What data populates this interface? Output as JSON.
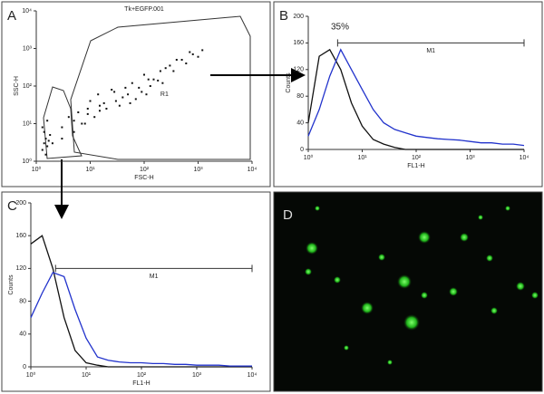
{
  "chart_data": [
    {
      "type": "scatter",
      "panel_label": "A",
      "title": "Tk+EGFP.001",
      "xlabel": "FSC-H",
      "ylabel": "SSC-H",
      "gate_label": "R1",
      "log_x": true,
      "log_y": true,
      "color": "#111111",
      "xlim": [
        1,
        10000
      ],
      "ylim": [
        1,
        10000
      ],
      "xticks": [
        {
          "value": 1,
          "label": "10⁰"
        },
        {
          "value": 10,
          "label": "10¹"
        },
        {
          "value": 100,
          "label": "10²"
        },
        {
          "value": 1000,
          "label": "10³"
        },
        {
          "value": 10000,
          "label": "10⁴"
        }
      ],
      "yticks": [
        {
          "value": 1,
          "label": "10⁰"
        },
        {
          "value": 10,
          "label": "10¹"
        },
        {
          "value": 100,
          "label": "10²"
        },
        {
          "value": 1000,
          "label": "10³"
        },
        {
          "value": 10000,
          "label": "10⁴"
        }
      ],
      "x": [
        1.3,
        1.4,
        1.5,
        1.6,
        1.4,
        1.7,
        1.5,
        1.3,
        1.8,
        1.6,
        3,
        5,
        8,
        12,
        20,
        30,
        50,
        80,
        120,
        200,
        300,
        500,
        800,
        1200,
        6,
        10,
        15,
        25,
        40,
        60,
        100,
        150,
        250,
        400,
        700,
        1000,
        4,
        7,
        9,
        14,
        18,
        35,
        45,
        70,
        90,
        130,
        180,
        350,
        2,
        3,
        5,
        9,
        15,
        28,
        55,
        110,
        220,
        600
      ],
      "values": [
        2,
        3,
        4,
        2.5,
        6,
        3.5,
        1.5,
        8,
        5,
        12,
        4,
        6,
        10,
        15,
        25,
        40,
        60,
        90,
        150,
        250,
        350,
        500,
        700,
        900,
        20,
        40,
        30,
        80,
        50,
        120,
        200,
        150,
        300,
        500,
        800,
        600,
        15,
        10,
        25,
        60,
        35,
        30,
        90,
        45,
        70,
        100,
        140,
        250,
        3,
        8,
        12,
        18,
        22,
        70,
        35,
        60,
        120,
        400
      ]
    },
    {
      "type": "histogram",
      "panel_label": "B",
      "annotation": "35%",
      "xlabel": "FL1-H",
      "ylabel": "Counts",
      "log_x": true,
      "xlim": [
        1,
        10000
      ],
      "ylim": [
        0,
        200
      ],
      "xticks": [
        {
          "value": 1,
          "label": "10⁰"
        },
        {
          "value": 10,
          "label": "10¹"
        },
        {
          "value": 100,
          "label": "10²"
        },
        {
          "value": 1000,
          "label": "10³"
        },
        {
          "value": 10000,
          "label": "10⁴"
        }
      ],
      "yticks": [
        0,
        40,
        80,
        120,
        160,
        200
      ],
      "marker": {
        "label": "M1",
        "from": 3.5,
        "to": 10000,
        "level": 160
      },
      "x": [
        1,
        1.6,
        2.5,
        4,
        6.3,
        10,
        16,
        25,
        40,
        63,
        100,
        160,
        250,
        400,
        630,
        1000,
        1600,
        2500,
        4000,
        6300,
        10000
      ],
      "series": [
        {
          "color": "#111111",
          "values": [
            40,
            140,
            150,
            120,
            70,
            35,
            15,
            8,
            3,
            0,
            0,
            0,
            0,
            0,
            0,
            0,
            0,
            0,
            0,
            0,
            0
          ]
        },
        {
          "color": "#2233cc",
          "values": [
            20,
            60,
            110,
            150,
            120,
            90,
            60,
            40,
            30,
            25,
            20,
            18,
            16,
            15,
            14,
            12,
            10,
            10,
            8,
            8,
            6
          ]
        }
      ]
    },
    {
      "type": "histogram",
      "panel_label": "C",
      "xlabel": "FL1-H",
      "ylabel": "Counts",
      "log_x": true,
      "xlim": [
        1,
        10000
      ],
      "ylim": [
        0,
        200
      ],
      "xticks": [
        {
          "value": 1,
          "label": "10⁰"
        },
        {
          "value": 10,
          "label": "10¹"
        },
        {
          "value": 100,
          "label": "10²"
        },
        {
          "value": 1000,
          "label": "10³"
        },
        {
          "value": 10000,
          "label": "10⁴"
        }
      ],
      "yticks": [
        0,
        40,
        80,
        120,
        160,
        200
      ],
      "marker": {
        "label": "M1",
        "from": 2.8,
        "to": 10000,
        "level": 120
      },
      "x": [
        1,
        1.6,
        2.5,
        4,
        6.3,
        10,
        16,
        25,
        40,
        63,
        100,
        160,
        250,
        400,
        630,
        1000,
        1600,
        2500,
        4000,
        6300,
        10000
      ],
      "series": [
        {
          "color": "#111111",
          "values": [
            150,
            160,
            120,
            60,
            20,
            5,
            2,
            0,
            0,
            0,
            0,
            0,
            0,
            0,
            0,
            0,
            0,
            0,
            0,
            0,
            0
          ]
        },
        {
          "color": "#2233cc",
          "values": [
            60,
            90,
            115,
            110,
            70,
            35,
            12,
            8,
            6,
            5,
            5,
            4,
            4,
            3,
            3,
            2,
            2,
            2,
            1,
            1,
            1
          ]
        }
      ]
    }
  ],
  "image_panel": {
    "label": "D"
  }
}
